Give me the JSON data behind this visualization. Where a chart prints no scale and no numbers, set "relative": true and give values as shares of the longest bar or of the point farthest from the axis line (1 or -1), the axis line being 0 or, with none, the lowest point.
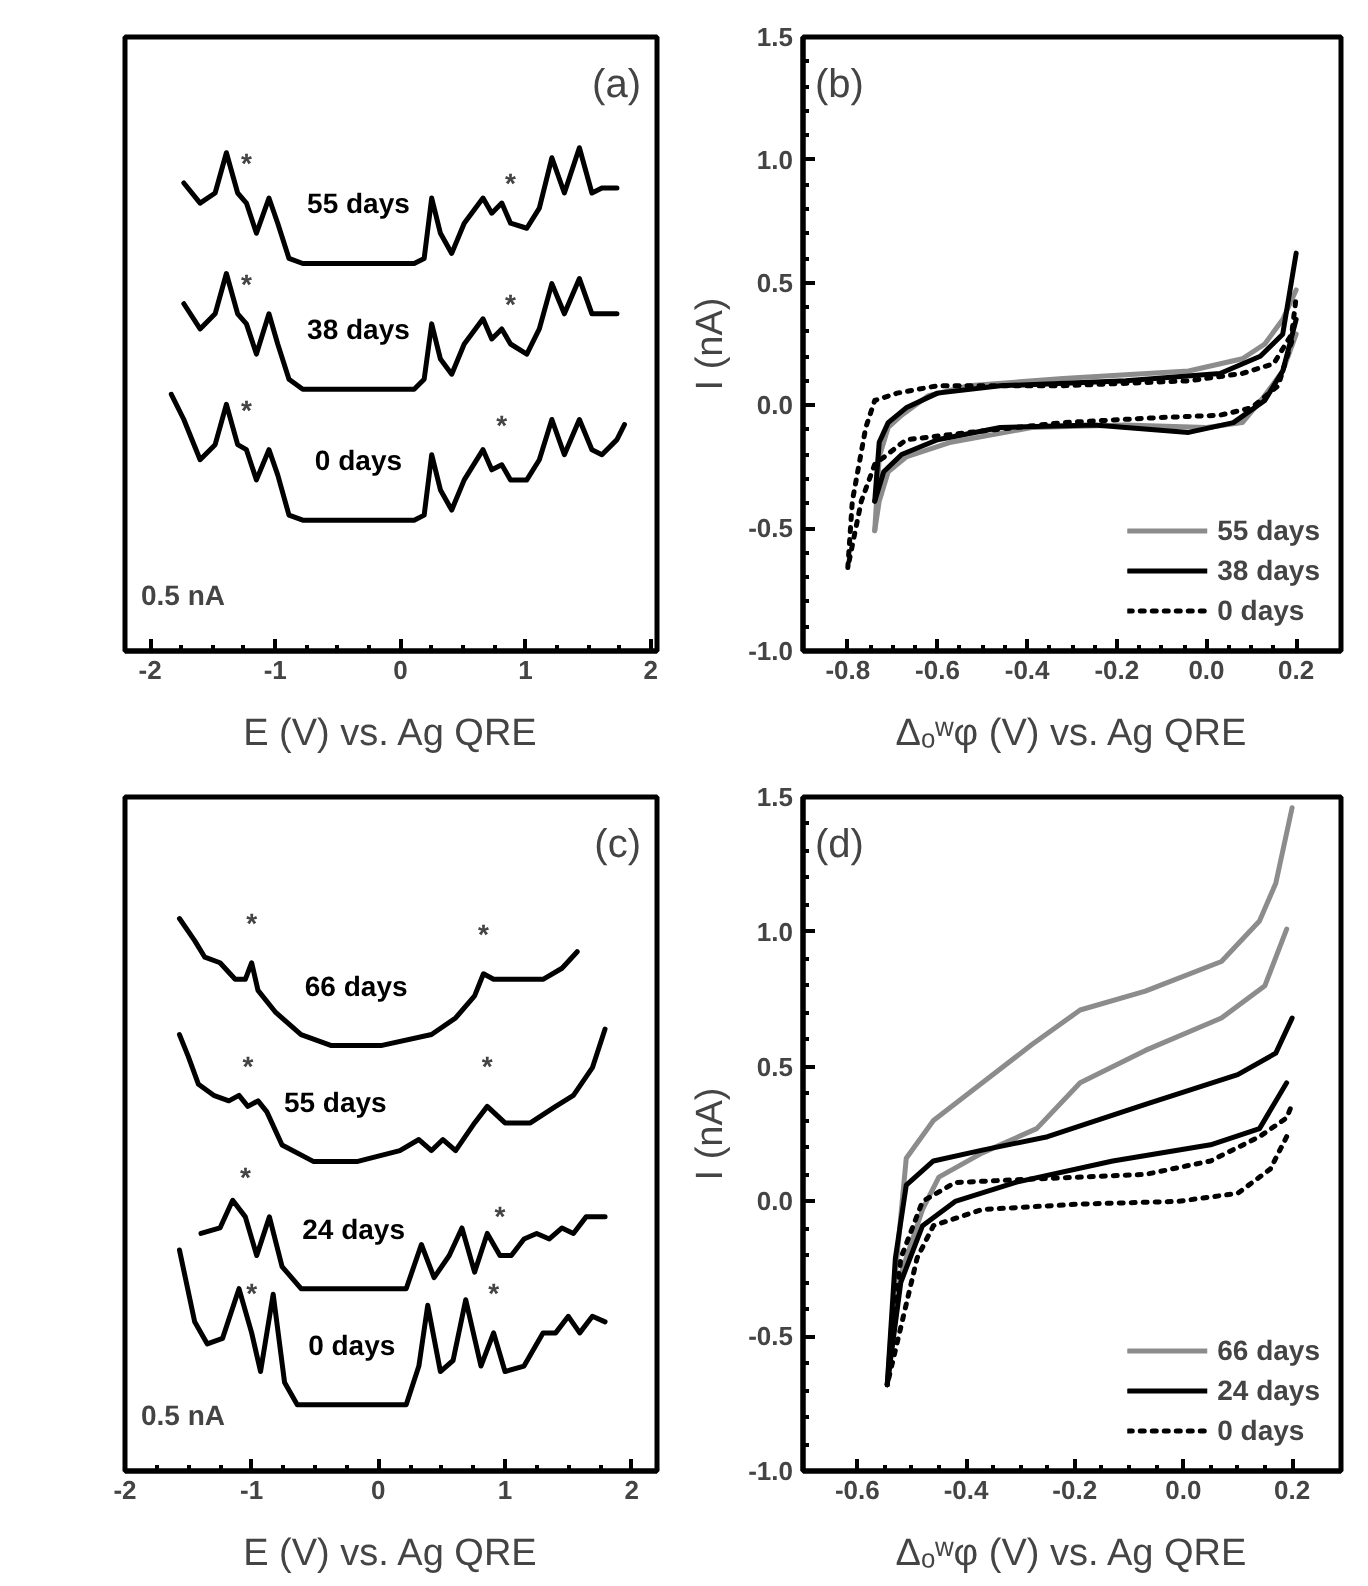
{
  "chart_data": [
    {
      "type": "line",
      "title": "(a)",
      "xlabel": "E (V) vs. Ag QRE",
      "relative": true,
      "tick_labels": "x",
      "xlim": [
        -2.2,
        2.05
      ],
      "xticks": [
        -2,
        -1,
        0,
        1,
        2
      ],
      "series": [
        {
          "name": "55 days",
          "color": "#000000",
          "x": [
            -1.73,
            -1.6,
            -1.48,
            -1.39,
            -1.3,
            -1.23,
            -1.15,
            -1.05,
            -0.98,
            -0.89,
            -0.78,
            0.11,
            0.19,
            0.25,
            0.32,
            0.41,
            0.51,
            0.66,
            0.73,
            0.81,
            0.88,
            1.01,
            1.11,
            1.21,
            1.31,
            1.43,
            1.53,
            1.61,
            1.73
          ],
          "values": [
            0.93,
            0.89,
            0.91,
            0.99,
            0.91,
            0.89,
            0.83,
            0.9,
            0.85,
            0.78,
            0.77,
            0.77,
            0.78,
            0.9,
            0.83,
            0.79,
            0.85,
            0.9,
            0.87,
            0.89,
            0.85,
            0.84,
            0.88,
            0.98,
            0.91,
            1.0,
            0.91,
            0.92,
            0.92
          ]
        },
        {
          "name": "38 days",
          "color": "#000000",
          "x": [
            -1.73,
            -1.6,
            -1.48,
            -1.39,
            -1.3,
            -1.23,
            -1.15,
            -1.05,
            -0.98,
            -0.89,
            -0.78,
            0.11,
            0.19,
            0.25,
            0.32,
            0.41,
            0.51,
            0.66,
            0.73,
            0.81,
            0.88,
            1.01,
            1.11,
            1.21,
            1.31,
            1.43,
            1.53,
            1.61,
            1.73
          ],
          "values": [
            0.69,
            0.64,
            0.67,
            0.75,
            0.67,
            0.65,
            0.59,
            0.67,
            0.61,
            0.54,
            0.52,
            0.52,
            0.54,
            0.65,
            0.58,
            0.55,
            0.61,
            0.66,
            0.62,
            0.64,
            0.61,
            0.59,
            0.64,
            0.73,
            0.67,
            0.74,
            0.67,
            0.67,
            0.67
          ]
        },
        {
          "name": "0 days",
          "color": "#000000",
          "x": [
            -1.83,
            -1.73,
            -1.6,
            -1.48,
            -1.39,
            -1.3,
            -1.23,
            -1.15,
            -1.05,
            -0.98,
            -0.89,
            -0.78,
            0.11,
            0.19,
            0.25,
            0.32,
            0.41,
            0.51,
            0.66,
            0.73,
            0.81,
            0.88,
            1.01,
            1.11,
            1.21,
            1.31,
            1.43,
            1.53,
            1.61,
            1.73,
            1.79
          ],
          "values": [
            0.51,
            0.46,
            0.38,
            0.41,
            0.49,
            0.41,
            0.4,
            0.34,
            0.4,
            0.35,
            0.27,
            0.26,
            0.26,
            0.27,
            0.39,
            0.32,
            0.28,
            0.34,
            0.4,
            0.36,
            0.37,
            0.34,
            0.34,
            0.38,
            0.46,
            0.39,
            0.46,
            0.4,
            0.39,
            0.42,
            0.45
          ]
        }
      ],
      "annotations": [
        {
          "text": "*",
          "x": -1.23,
          "y": 0.89
        },
        {
          "text": "*",
          "x": 0.88,
          "y": 0.85
        },
        {
          "text": "*",
          "x": -1.23,
          "y": 0.65
        },
        {
          "text": "*",
          "x": 0.88,
          "y": 0.61
        },
        {
          "text": "*",
          "x": -1.23,
          "y": 0.4
        },
        {
          "text": "*",
          "x": 0.81,
          "y": 0.37
        },
        "0.5 nA"
      ]
    },
    {
      "type": "line",
      "title": "(b)",
      "xlabel": "Δₒʷφ (V) vs. Ag QRE",
      "ylabel": "I (nA)",
      "xlim": [
        -0.9,
        0.3
      ],
      "ylim": [
        -1.0,
        1.5
      ],
      "xticks": [
        -0.8,
        -0.6,
        -0.4,
        -0.2,
        {
          "value": 0,
          "label": "0.0"
        },
        0.2
      ],
      "yticks": [
        {
          "value": -1,
          "label": "-1.0"
        },
        -0.5,
        {
          "value": 0,
          "label": "0.0"
        },
        0.5,
        {
          "value": 1,
          "label": "1.0"
        },
        1.5
      ],
      "legend": "bottom right",
      "series": [
        {
          "name": "55 days",
          "color": "#8c8c8c",
          "line_style": "solid",
          "x": [
            -0.74,
            -0.73,
            -0.71,
            -0.68,
            -0.62,
            -0.53,
            -0.32,
            -0.04,
            0.08,
            0.13,
            0.17,
            0.2
          ],
          "values": [
            -0.51,
            -0.21,
            -0.09,
            -0.04,
            0.04,
            0.08,
            0.11,
            0.14,
            0.19,
            0.25,
            0.35,
            0.47
          ]
        },
        {
          "color": "#8c8c8c",
          "line_style": "solid",
          "x": [
            0.2,
            0.17,
            0.13,
            0.08,
            0.0,
            -0.18,
            -0.39,
            -0.57,
            -0.67,
            -0.71,
            -0.73,
            -0.74
          ],
          "values": [
            0.29,
            0.14,
            0.04,
            -0.07,
            -0.09,
            -0.08,
            -0.09,
            -0.15,
            -0.21,
            -0.27,
            -0.39,
            -0.51
          ]
        },
        {
          "name": "38 days",
          "color": "#000000",
          "line_style": "solid",
          "x": [
            -0.74,
            -0.73,
            -0.71,
            -0.67,
            -0.6,
            -0.46,
            -0.18,
            0.03,
            0.12,
            0.17,
            0.2
          ],
          "values": [
            -0.39,
            -0.15,
            -0.07,
            -0.01,
            0.05,
            0.08,
            0.1,
            0.13,
            0.2,
            0.29,
            0.62
          ]
        },
        {
          "color": "#000000",
          "line_style": "solid",
          "x": [
            0.2,
            0.17,
            0.13,
            0.06,
            -0.04,
            -0.25,
            -0.46,
            -0.6,
            -0.68,
            -0.72,
            -0.74
          ],
          "values": [
            0.35,
            0.14,
            0.02,
            -0.07,
            -0.11,
            -0.08,
            -0.09,
            -0.14,
            -0.2,
            -0.27,
            -0.39
          ]
        },
        {
          "name": "0 days",
          "color": "#000000",
          "line_style": "dotted",
          "x": [
            -0.8,
            -0.79,
            -0.76,
            -0.74,
            -0.69,
            -0.6,
            -0.32,
            -0.04,
            0.08,
            0.15,
            0.19,
            0.2
          ],
          "values": [
            -0.66,
            -0.39,
            -0.09,
            0.02,
            0.05,
            0.08,
            0.08,
            0.1,
            0.13,
            0.17,
            0.29,
            0.44
          ]
        },
        {
          "color": "#000000",
          "line_style": "dotted",
          "x": [
            0.19,
            0.16,
            0.1,
            0.03,
            -0.11,
            -0.32,
            -0.53,
            -0.67,
            -0.74,
            -0.77,
            -0.8
          ],
          "values": [
            0.26,
            0.08,
            -0.01,
            -0.04,
            -0.05,
            -0.07,
            -0.11,
            -0.14,
            -0.24,
            -0.39,
            -0.66
          ]
        }
      ]
    },
    {
      "type": "line",
      "title": "(c)",
      "xlabel": "E (V) vs. Ag QRE",
      "relative": true,
      "tick_labels": "x",
      "xlim": [
        -2.0,
        2.2
      ],
      "xticks": [
        -2,
        -1,
        0,
        1,
        2
      ],
      "series": [
        {
          "name": "66 days",
          "color": "#000000",
          "x": [
            -1.57,
            -1.45,
            -1.37,
            -1.25,
            -1.13,
            -1.05,
            -1.0,
            -0.95,
            -0.81,
            -0.61,
            -0.37,
            0.02,
            0.42,
            0.61,
            0.76,
            0.83,
            0.91,
            1.1,
            1.3,
            1.45,
            1.57
          ],
          "values": [
            1.0,
            0.96,
            0.93,
            0.92,
            0.89,
            0.89,
            0.92,
            0.87,
            0.83,
            0.79,
            0.77,
            0.77,
            0.79,
            0.82,
            0.86,
            0.9,
            0.89,
            0.89,
            0.89,
            0.91,
            0.94
          ]
        },
        {
          "name": "55 days",
          "color": "#000000",
          "x": [
            -1.57,
            -1.5,
            -1.42,
            -1.3,
            -1.18,
            -1.1,
            -1.03,
            -0.95,
            -0.88,
            -0.76,
            -0.51,
            -0.17,
            0.17,
            0.32,
            0.42,
            0.51,
            0.61,
            0.76,
            0.86,
            1.0,
            1.2,
            1.4,
            1.54,
            1.69,
            1.79
          ],
          "values": [
            0.79,
            0.75,
            0.7,
            0.68,
            0.67,
            0.68,
            0.66,
            0.67,
            0.65,
            0.59,
            0.56,
            0.56,
            0.58,
            0.6,
            0.58,
            0.6,
            0.58,
            0.63,
            0.66,
            0.63,
            0.63,
            0.66,
            0.68,
            0.73,
            0.8
          ]
        },
        {
          "name": "24 days",
          "color": "#000000",
          "x": [
            -1.4,
            -1.25,
            -1.15,
            -1.05,
            -0.96,
            -0.86,
            -0.76,
            -0.61,
            0.22,
            0.34,
            0.44,
            0.56,
            0.66,
            0.76,
            0.86,
            0.96,
            1.05,
            1.15,
            1.25,
            1.35,
            1.45,
            1.54,
            1.64,
            1.79
          ],
          "values": [
            0.43,
            0.44,
            0.49,
            0.46,
            0.39,
            0.46,
            0.37,
            0.33,
            0.33,
            0.41,
            0.35,
            0.39,
            0.44,
            0.36,
            0.43,
            0.39,
            0.39,
            0.42,
            0.43,
            0.42,
            0.44,
            0.43,
            0.46,
            0.46
          ]
        },
        {
          "name": "0 days",
          "color": "#000000",
          "x": [
            -1.57,
            -1.45,
            -1.35,
            -1.23,
            -1.1,
            -1.0,
            -0.93,
            -0.83,
            -0.74,
            -0.64,
            0.22,
            0.32,
            0.39,
            0.49,
            0.59,
            0.69,
            0.81,
            0.91,
            1.0,
            1.15,
            1.3,
            1.4,
            1.5,
            1.59,
            1.69,
            1.79
          ],
          "values": [
            0.4,
            0.27,
            0.23,
            0.24,
            0.33,
            0.25,
            0.18,
            0.32,
            0.16,
            0.12,
            0.12,
            0.19,
            0.3,
            0.18,
            0.2,
            0.31,
            0.19,
            0.25,
            0.18,
            0.19,
            0.25,
            0.25,
            0.28,
            0.25,
            0.28,
            0.27
          ]
        }
      ],
      "annotations": [
        {
          "text": "*",
          "x": -1.0,
          "y": 0.92
        },
        {
          "text": "*",
          "x": 0.83,
          "y": 0.9
        },
        {
          "text": "*",
          "x": -1.03,
          "y": 0.66
        },
        {
          "text": "*",
          "x": 0.86,
          "y": 0.66
        },
        {
          "text": "*",
          "x": -1.05,
          "y": 0.46
        },
        {
          "text": "*",
          "x": 0.96,
          "y": 0.39
        },
        {
          "text": "*",
          "x": -1.0,
          "y": 0.25
        },
        {
          "text": "*",
          "x": 0.91,
          "y": 0.25
        },
        "0.5 nA"
      ]
    },
    {
      "type": "line",
      "title": "(d)",
      "xlabel": "Δₒʷφ (V) vs. Ag QRE",
      "ylabel": "I (nA)",
      "xlim": [
        -0.7,
        0.29
      ],
      "ylim": [
        -1.0,
        1.5
      ],
      "xticks": [
        -0.6,
        -0.4,
        -0.2,
        {
          "value": 0,
          "label": "0.0"
        },
        0.2
      ],
      "yticks": [
        {
          "value": -1,
          "label": "-1.0"
        },
        -0.5,
        {
          "value": 0,
          "label": "0.0"
        },
        0.5,
        {
          "value": 1,
          "label": "1.0"
        },
        1.5
      ],
      "legend": "bottom right",
      "series": [
        {
          "name": "66 days",
          "color": "#8c8c8c",
          "line_style": "solid",
          "x": [
            -0.545,
            -0.53,
            -0.51,
            -0.46,
            -0.37,
            -0.28,
            -0.19,
            -0.07,
            0.07,
            0.14,
            0.17,
            0.2
          ],
          "values": [
            -0.68,
            -0.27,
            0.16,
            0.3,
            0.44,
            0.58,
            0.71,
            0.78,
            0.89,
            1.04,
            1.18,
            1.46
          ]
        },
        {
          "color": "#8c8c8c",
          "line_style": "solid",
          "x": [
            0.19,
            0.15,
            0.07,
            -0.07,
            -0.19,
            -0.27,
            -0.37,
            -0.45,
            -0.48,
            -0.52,
            -0.545
          ],
          "values": [
            1.01,
            0.8,
            0.68,
            0.56,
            0.44,
            0.27,
            0.18,
            0.09,
            -0.03,
            -0.27,
            -0.68
          ]
        },
        {
          "name": "24 days",
          "color": "#000000",
          "line_style": "solid",
          "x": [
            -0.545,
            -0.53,
            -0.51,
            -0.46,
            -0.37,
            -0.25,
            -0.07,
            0.1,
            0.17,
            0.2
          ],
          "values": [
            -0.68,
            -0.21,
            0.06,
            0.15,
            0.19,
            0.24,
            0.36,
            0.47,
            0.55,
            0.68
          ]
        },
        {
          "color": "#000000",
          "line_style": "solid",
          "x": [
            0.19,
            0.14,
            0.05,
            -0.13,
            -0.31,
            -0.42,
            -0.48,
            -0.52,
            -0.545
          ],
          "values": [
            0.44,
            0.27,
            0.21,
            0.15,
            0.07,
            0.0,
            -0.09,
            -0.3,
            -0.68
          ]
        },
        {
          "name": "0 days",
          "color": "#000000",
          "line_style": "dotted",
          "x": [
            -0.545,
            -0.52,
            -0.48,
            -0.42,
            -0.31,
            -0.07,
            0.05,
            0.14,
            0.19,
            0.2
          ],
          "values": [
            -0.68,
            -0.21,
            0.0,
            0.07,
            0.08,
            0.1,
            0.15,
            0.24,
            0.31,
            0.36
          ]
        },
        {
          "color": "#000000",
          "line_style": "dotted",
          "x": [
            0.19,
            0.16,
            0.1,
            -0.01,
            -0.19,
            -0.37,
            -0.46,
            -0.49,
            -0.545
          ],
          "values": [
            0.24,
            0.12,
            0.03,
            0.0,
            -0.01,
            -0.03,
            -0.09,
            -0.21,
            -0.68
          ]
        }
      ]
    }
  ]
}
